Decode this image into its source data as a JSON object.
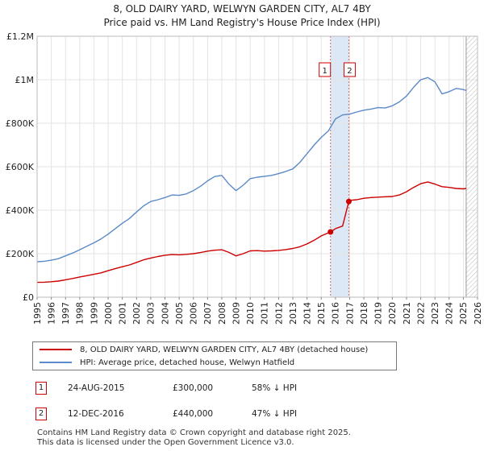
{
  "title": "8, OLD DAIRY YARD, WELWYN GARDEN CITY, AL7 4BY",
  "subtitle": "Price paid vs. HM Land Registry's House Price Index (HPI)",
  "chart_data": {
    "type": "line",
    "title": "8, OLD DAIRY YARD, WELWYN GARDEN CITY, AL7 4BY",
    "subtitle": "Price paid vs. HM Land Registry's House Price Index (HPI)",
    "xlim": [
      1995,
      2026
    ],
    "ylim": [
      0,
      1200000
    ],
    "x_ticks": [
      1995,
      1996,
      1997,
      1998,
      1999,
      2000,
      2001,
      2002,
      2003,
      2004,
      2005,
      2006,
      2007,
      2008,
      2009,
      2010,
      2011,
      2012,
      2013,
      2014,
      2015,
      2016,
      2017,
      2018,
      2019,
      2020,
      2021,
      2022,
      2023,
      2024,
      2025,
      2026
    ],
    "y_ticks": [
      {
        "value": 0,
        "label": "£0"
      },
      {
        "value": 200000,
        "label": "£200K"
      },
      {
        "value": 400000,
        "label": "£400K"
      },
      {
        "value": 600000,
        "label": "£600K"
      },
      {
        "value": 800000,
        "label": "£800K"
      },
      {
        "value": 1000000,
        "label": "£1M"
      },
      {
        "value": 1200000,
        "label": "£1.2M"
      }
    ],
    "grid": true,
    "forecast_start": 2025.2,
    "series": [
      {
        "name": "8, OLD DAIRY YARD, WELWYN GARDEN CITY, AL7 4BY (detached house)",
        "color": "#cc0000",
        "x": [
          1995,
          1995.5,
          1996,
          1996.5,
          1997,
          1997.5,
          1998,
          1998.5,
          1999,
          1999.5,
          2000,
          2000.5,
          2001,
          2001.5,
          2002,
          2002.5,
          2003,
          2003.5,
          2004,
          2004.5,
          2005,
          2005.5,
          2006,
          2006.5,
          2007,
          2007.5,
          2008,
          2008.5,
          2009,
          2009.5,
          2010,
          2010.5,
          2011,
          2011.5,
          2012,
          2012.5,
          2013,
          2013.5,
          2014,
          2014.5,
          2015,
          2015.65,
          2016,
          2016.5,
          2016.94,
          2017,
          2017.5,
          2018,
          2018.5,
          2019,
          2019.5,
          2020,
          2020.5,
          2021,
          2021.5,
          2022,
          2022.5,
          2023,
          2023.5,
          2024,
          2024.5,
          2025,
          2025.2
        ],
        "values": [
          68000,
          69000,
          71000,
          74000,
          80000,
          86000,
          93000,
          99000,
          105000,
          112000,
          122000,
          131000,
          140000,
          148000,
          160000,
          172000,
          180000,
          187000,
          193000,
          196000,
          195000,
          197000,
          200000,
          205000,
          212000,
          216000,
          218000,
          206000,
          190000,
          200000,
          213000,
          214000,
          212000,
          213000,
          215000,
          219000,
          224000,
          232000,
          245000,
          262000,
          282000,
          300000,
          315000,
          327000,
          440000,
          445000,
          448000,
          455000,
          458000,
          460000,
          462000,
          463000,
          470000,
          485000,
          505000,
          522000,
          530000,
          520000,
          508000,
          505000,
          500000,
          498000,
          500000
        ]
      },
      {
        "name": "HPI: Average price, detached house, Welwyn Hatfield",
        "color": "#5b8ac8",
        "x": [
          1995,
          1995.5,
          1996,
          1996.5,
          1997,
          1997.5,
          1998,
          1998.5,
          1999,
          1999.5,
          2000,
          2000.5,
          2001,
          2001.5,
          2002,
          2002.5,
          2003,
          2003.5,
          2004,
          2004.5,
          2005,
          2005.5,
          2006,
          2006.5,
          2007,
          2007.5,
          2008,
          2008.5,
          2009,
          2009.5,
          2010,
          2010.5,
          2011,
          2011.5,
          2012,
          2012.5,
          2013,
          2013.5,
          2014,
          2014.5,
          2015,
          2015.5,
          2016,
          2016.5,
          2017,
          2017.5,
          2018,
          2018.5,
          2019,
          2019.5,
          2020,
          2020.5,
          2021,
          2021.5,
          2022,
          2022.5,
          2023,
          2023.5,
          2024,
          2024.5,
          2025,
          2025.2
        ],
        "values": [
          163000,
          165000,
          170000,
          177000,
          190000,
          203000,
          218000,
          234000,
          250000,
          268000,
          290000,
          315000,
          340000,
          362000,
          392000,
          420000,
          440000,
          448000,
          458000,
          470000,
          468000,
          475000,
          490000,
          510000,
          535000,
          555000,
          560000,
          520000,
          490000,
          515000,
          545000,
          552000,
          556000,
          560000,
          568000,
          578000,
          590000,
          620000,
          660000,
          700000,
          735000,
          765000,
          820000,
          838000,
          842000,
          852000,
          860000,
          865000,
          872000,
          870000,
          880000,
          898000,
          925000,
          965000,
          1000000,
          1010000,
          990000,
          935000,
          945000,
          960000,
          955000,
          950000
        ]
      }
    ],
    "transactions": [
      {
        "label": "1",
        "date": "24-AUG-2015",
        "x": 2015.65,
        "price": 300000,
        "price_label": "£300,000",
        "hpi": "58% ↓ HPI"
      },
      {
        "label": "2",
        "date": "12-DEC-2016",
        "x": 2016.94,
        "price": 440000,
        "price_label": "£440,000",
        "hpi": "47% ↓ HPI"
      }
    ]
  },
  "legend": {
    "property_label": "8, OLD DAIRY YARD, WELWYN GARDEN CITY, AL7 4BY (detached house)",
    "hpi_label": "HPI: Average price, detached house, Welwyn Hatfield",
    "property_color": "#cc0000",
    "hpi_color": "#5b8ac8"
  },
  "footer": {
    "line1": "Contains HM Land Registry data © Crown copyright and database right 2025.",
    "line2": "This data is licensed under the Open Government Licence v3.0."
  }
}
